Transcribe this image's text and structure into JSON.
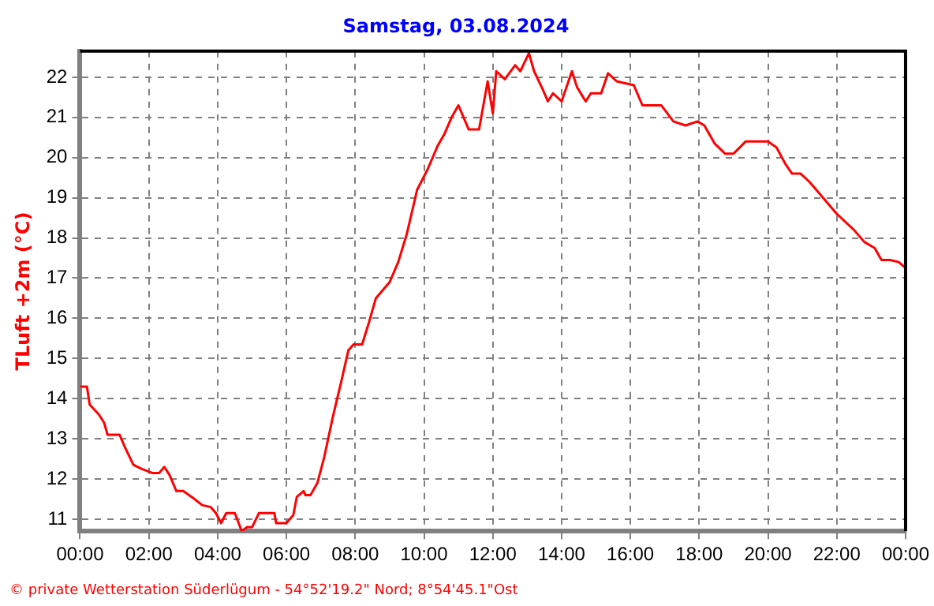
{
  "chart_data": {
    "type": "line",
    "title": "Samstag, 03.08.2024",
    "ylabel": "TLuft +2m (°C)",
    "annotations": [
      "© private Wetterstation Süderlügum - 54°52'19.2\" Nord; 8°54'45.1\"Ost"
    ],
    "xlim": [
      0,
      24
    ],
    "xticks": [
      {
        "value": 0,
        "label": "00:00"
      },
      {
        "value": 2,
        "label": "02:00"
      },
      {
        "value": 4,
        "label": "04:00"
      },
      {
        "value": 6,
        "label": "06:00"
      },
      {
        "value": 8,
        "label": "08:00"
      },
      {
        "value": 10,
        "label": "10:00"
      },
      {
        "value": 12,
        "label": "12:00"
      },
      {
        "value": 14,
        "label": "14:00"
      },
      {
        "value": 16,
        "label": "16:00"
      },
      {
        "value": 18,
        "label": "18:00"
      },
      {
        "value": 20,
        "label": "20:00"
      },
      {
        "value": 22,
        "label": "22:00"
      },
      {
        "value": 24,
        "label": "00:00"
      }
    ],
    "ylim": [
      10.7,
      22.65
    ],
    "yticks": [
      11,
      12,
      13,
      14,
      15,
      16,
      17,
      18,
      19,
      20,
      21,
      22
    ],
    "grid": true,
    "legend": false,
    "marker": "none",
    "line_style": "solid",
    "series": [
      {
        "color": "#ff0000",
        "x": [
          0,
          0.2,
          0.28,
          0.55,
          0.7,
          0.8,
          1.15,
          1.3,
          1.55,
          1.8,
          2.1,
          2.3,
          2.45,
          2.6,
          2.8,
          3.0,
          3.25,
          3.4,
          3.55,
          3.8,
          3.95,
          4.1,
          4.25,
          4.5,
          4.7,
          4.85,
          5.0,
          5.2,
          5.4,
          5.65,
          5.7,
          6.0,
          6.2,
          6.3,
          6.5,
          6.55,
          6.7,
          6.9,
          7.1,
          7.35,
          7.6,
          7.8,
          7.95,
          8.2,
          8.4,
          8.6,
          8.8,
          9.0,
          9.25,
          9.5,
          9.8,
          10.1,
          10.4,
          10.6,
          10.8,
          11.0,
          11.3,
          11.6,
          11.85,
          12.0,
          12.1,
          12.35,
          12.65,
          12.8,
          13.05,
          13.2,
          13.45,
          13.6,
          13.75,
          14.0,
          14.3,
          14.45,
          14.7,
          14.85,
          15.15,
          15.35,
          15.6,
          16.1,
          16.35,
          16.9,
          17.25,
          17.6,
          17.95,
          18.15,
          18.45,
          18.75,
          19.0,
          19.35,
          20.0,
          20.25,
          20.5,
          20.7,
          20.95,
          21.2,
          21.55,
          22.0,
          22.5,
          22.8,
          23.1,
          23.3,
          23.55,
          23.8,
          24
        ],
        "values": [
          14.3,
          14.3,
          13.85,
          13.6,
          13.4,
          13.1,
          13.1,
          12.8,
          12.35,
          12.25,
          12.15,
          12.15,
          12.3,
          12.1,
          11.7,
          11.7,
          11.55,
          11.45,
          11.35,
          11.3,
          11.15,
          10.9,
          11.15,
          11.15,
          10.7,
          10.8,
          10.8,
          11.15,
          11.15,
          11.15,
          10.9,
          10.9,
          11.1,
          11.55,
          11.7,
          11.6,
          11.6,
          11.9,
          12.55,
          13.55,
          14.45,
          15.2,
          15.35,
          15.35,
          15.9,
          16.5,
          16.7,
          16.9,
          17.4,
          18.1,
          19.2,
          19.7,
          20.3,
          20.6,
          21.0,
          21.3,
          20.7,
          20.7,
          21.9,
          21.1,
          22.15,
          21.95,
          22.3,
          22.15,
          22.6,
          22.15,
          21.7,
          21.4,
          21.6,
          21.4,
          22.15,
          21.75,
          21.4,
          21.6,
          21.6,
          22.1,
          21.9,
          21.8,
          21.3,
          21.3,
          20.9,
          20.8,
          20.9,
          20.8,
          20.35,
          20.1,
          20.1,
          20.4,
          20.4,
          20.25,
          19.85,
          19.6,
          19.6,
          19.4,
          19.05,
          18.6,
          18.2,
          17.9,
          17.75,
          17.45,
          17.45,
          17.4,
          17.25
        ]
      }
    ]
  }
}
